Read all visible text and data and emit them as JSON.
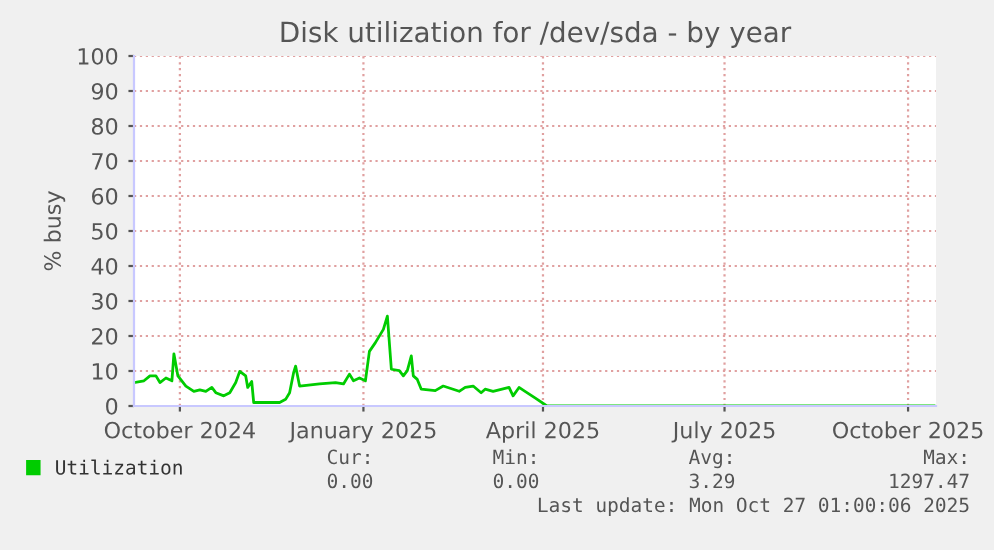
{
  "chart_data": {
    "type": "line",
    "title": "Disk utilization for /dev/sda - by year",
    "ylabel": "% busy",
    "x": [
      "2024-09-08",
      "2024-09-13",
      "2024-09-16",
      "2024-09-19",
      "2024-09-21",
      "2024-09-24",
      "2024-09-27",
      "2024-09-28",
      "2024-09-30",
      "2024-10-04",
      "2024-10-08",
      "2024-10-11",
      "2024-10-14",
      "2024-10-17",
      "2024-10-19",
      "2024-10-23",
      "2024-10-26",
      "2024-10-29",
      "2024-10-31",
      "2024-11-03",
      "2024-11-04",
      "2024-11-06",
      "2024-11-07",
      "2024-11-20",
      "2024-11-23",
      "2024-11-25",
      "2024-11-27",
      "2024-11-28",
      "2024-11-30",
      "2024-12-10",
      "2024-12-18",
      "2024-12-22",
      "2024-12-25",
      "2024-12-27",
      "2024-12-30",
      "2025-01-02",
      "2025-01-04",
      "2025-01-07",
      "2025-01-11",
      "2025-01-13",
      "2025-01-15",
      "2025-01-19",
      "2025-01-21",
      "2025-01-23",
      "2025-01-25",
      "2025-01-26",
      "2025-01-28",
      "2025-01-30",
      "2025-02-06",
      "2025-02-10",
      "2025-02-18",
      "2025-02-21",
      "2025-02-25",
      "2025-03-01",
      "2025-03-03",
      "2025-03-07",
      "2025-03-15",
      "2025-03-17",
      "2025-03-20",
      "2025-03-23",
      "2025-03-28",
      "2025-04-03",
      "2025-10-14"
    ],
    "series": [
      {
        "name": "Utilization",
        "color": "#00cc00",
        "values": [
          6.7,
          7.2,
          8.6,
          8.6,
          6.7,
          8.0,
          7.2,
          14.9,
          8.6,
          5.7,
          4.2,
          4.6,
          4.2,
          5.3,
          3.8,
          2.9,
          3.8,
          6.7,
          9.9,
          8.6,
          5.3,
          7.0,
          1.0,
          1.0,
          1.9,
          3.8,
          9.5,
          11.4,
          5.7,
          6.3,
          6.7,
          6.3,
          9.1,
          7.2,
          8.0,
          7.2,
          15.6,
          18.1,
          21.9,
          25.7,
          10.5,
          10.1,
          8.6,
          10.1,
          14.3,
          8.6,
          7.6,
          4.8,
          4.4,
          5.7,
          4.2,
          5.3,
          5.7,
          3.8,
          4.8,
          4.2,
          5.3,
          2.9,
          5.3,
          4.2,
          2.3,
          0,
          0
        ]
      }
    ],
    "xlim": [
      "2024-09-08",
      "2025-10-15"
    ],
    "xticks": [
      {
        "value": "2024-10-01",
        "label": "October 2024"
      },
      {
        "value": "2025-01-01",
        "label": "January 2025"
      },
      {
        "value": "2025-04-01",
        "label": "April 2025"
      },
      {
        "value": "2025-07-01",
        "label": "July 2025"
      },
      {
        "value": "2025-10-01",
        "label": "October 2025"
      }
    ],
    "ylim": [
      0,
      100
    ],
    "yticks": [
      0,
      10,
      20,
      30,
      40,
      50,
      60,
      70,
      80,
      90,
      100
    ],
    "grid": true,
    "legend": "bottom",
    "marker": "none",
    "line_style": "solid",
    "annotations": [
      "Cur:",
      "Min:",
      "Avg:",
      "Max:",
      "0.00",
      "0.00",
      "3.29",
      "1297.47",
      "Last update: Mon Oct 27 01:00:06 2025"
    ]
  }
}
